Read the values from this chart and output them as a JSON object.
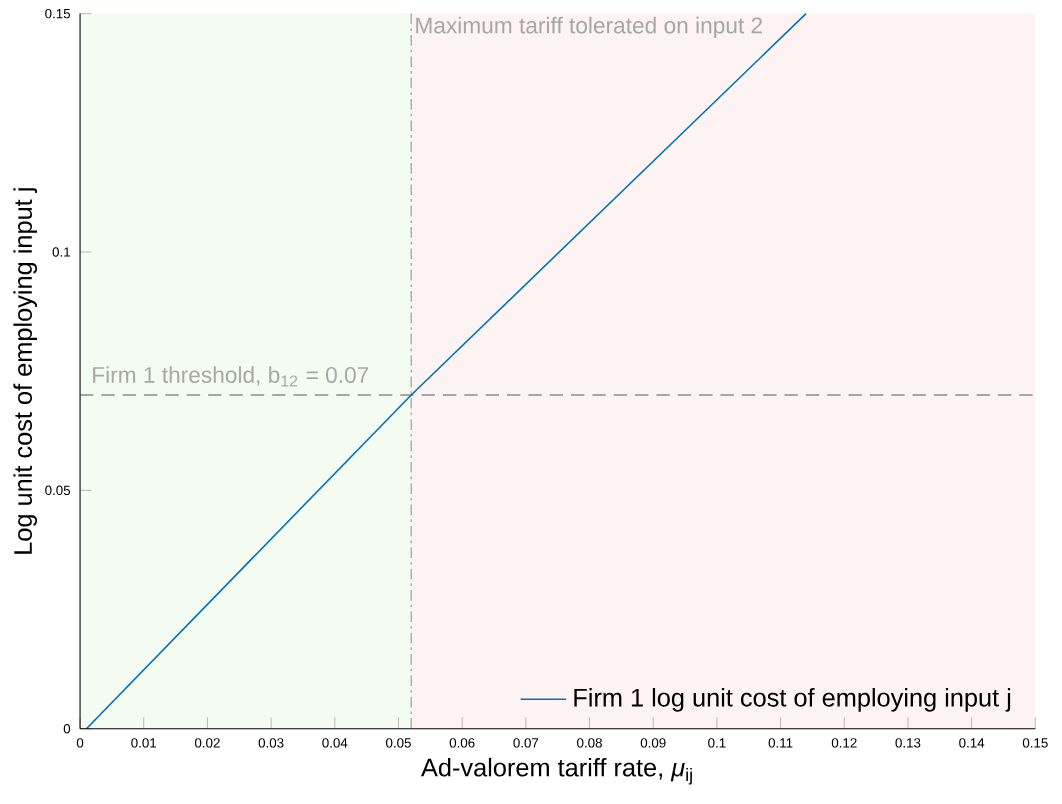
{
  "chart_data": {
    "type": "line",
    "xlabel": "Ad-valorem tariff rate,  *μ*$_{ij}$",
    "ylabel": "Log unit cost of employing input j",
    "x": [
      0.001,
      0.052,
      0.114
    ],
    "series": [
      {
        "name": "Firm 1 log unit cost of employing input j",
        "color": "#0072bd",
        "values": [
          0,
          0.07,
          0.15
        ]
      }
    ],
    "xlim": [
      0,
      0.15
    ],
    "ylim": [
      0,
      0.15
    ],
    "xticks": [
      0,
      0.01,
      0.02,
      0.03,
      0.04,
      0.05,
      0.06,
      0.07,
      0.08,
      0.09,
      0.1,
      0.11,
      0.12,
      0.13,
      0.14,
      0.15
    ],
    "yticks": [
      0,
      0.05,
      0.1,
      0.15
    ],
    "ref_lines": [
      {
        "axis": "x",
        "value": 0.052,
        "label": "Maximum tariff tolerated on input 2",
        "color": "#a6a6a6",
        "line_style": "dashdot"
      },
      {
        "axis": "y",
        "value": 0.07,
        "label": "Firm 1 threshold, b$_{12}$ = 0.07",
        "color": "#a6a6a6",
        "line_style": "dashed"
      }
    ],
    "bands": [
      {
        "axis": "x",
        "from": 0,
        "to": 0.052,
        "color": "#f4fcf2"
      },
      {
        "axis": "x",
        "from": 0.052,
        "to": 0.15,
        "color": "#fdf3f3"
      }
    ],
    "legend": "bottom right",
    "grid": false,
    "marker": "none",
    "line_style": "solid"
  }
}
